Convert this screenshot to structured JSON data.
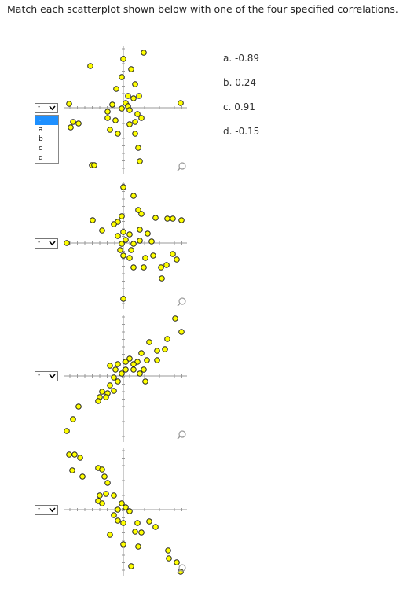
{
  "instruction": "Match each scatterplot shown below with one of the four specified correlations.",
  "options": [
    "a. -0.89",
    "b. 0.24",
    "c. 0.91",
    "d. -0.15"
  ],
  "dropdowns": [
    {
      "selected": "-",
      "menu": [
        "-",
        "a",
        "b",
        "c",
        "d"
      ]
    },
    {
      "selected": "-"
    },
    {
      "selected": "-"
    },
    {
      "selected": "-"
    }
  ]
}
